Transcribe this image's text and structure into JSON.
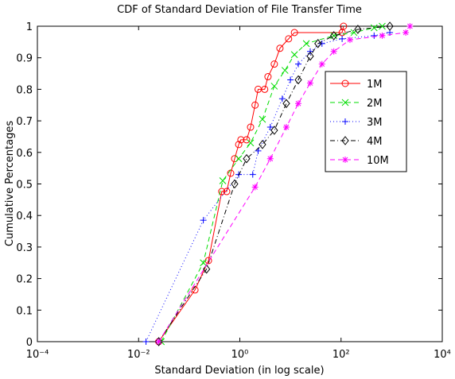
{
  "chart_data": {
    "type": "line",
    "title": "CDF of Standard Deviation of File Transfer Time",
    "x_label": "Standard Deviation (in log scale)",
    "y_label": "Cumulative Percentages",
    "x_log": true,
    "xlim": [
      0.0001,
      10000
    ],
    "xticks": [
      {
        "value": 0.0001,
        "label": "10⁻⁴"
      },
      {
        "value": 0.01,
        "label": "10⁻²"
      },
      {
        "value": 1,
        "label": "10⁰"
      },
      {
        "value": 100,
        "label": "10²"
      },
      {
        "value": 10000,
        "label": "10⁴"
      }
    ],
    "ylim": [
      0,
      1
    ],
    "yticks": [
      0,
      0.1,
      0.2,
      0.3,
      0.4,
      0.5,
      0.6,
      0.7,
      0.8,
      0.9,
      1
    ],
    "legend": "upper right",
    "series": [
      {
        "name": "1M",
        "color": "#ff0000",
        "marker": "circle",
        "dash": "",
        "x": [
          0.025,
          0.13,
          0.24,
          0.44,
          0.55,
          0.66,
          0.79,
          0.95,
          1.05,
          1.36,
          1.63,
          2.0,
          2.3,
          3.1,
          3.6,
          4.8,
          6.2,
          9.2,
          12,
          105,
          112
        ],
        "values": [
          0,
          0.164,
          0.257,
          0.476,
          0.476,
          0.534,
          0.58,
          0.625,
          0.64,
          0.64,
          0.68,
          0.75,
          0.8,
          0.8,
          0.84,
          0.88,
          0.93,
          0.96,
          0.98,
          0.98,
          1
        ]
      },
      {
        "name": "2M",
        "color": "#00dd00",
        "marker": "x",
        "dash": "6,4",
        "x": [
          0.028,
          0.19,
          0.46,
          0.95,
          1.63,
          2.8,
          4.8,
          7.8,
          12,
          20.6,
          72,
          180,
          450,
          650
        ],
        "values": [
          0,
          0.25,
          0.51,
          0.58,
          0.63,
          0.705,
          0.81,
          0.86,
          0.91,
          0.945,
          0.97,
          0.98,
          0.995,
          1
        ]
      },
      {
        "name": "3M",
        "color": "#0000ff",
        "marker": "plus",
        "dash": "1,3",
        "x": [
          0.014,
          0.19,
          0.95,
          1.8,
          2.3,
          4.0,
          6.9,
          10,
          14.3,
          24.6,
          42,
          105,
          450,
          920
        ],
        "values": [
          0,
          0.385,
          0.53,
          0.53,
          0.605,
          0.68,
          0.77,
          0.83,
          0.88,
          0.92,
          0.945,
          0.96,
          0.97,
          0.98
        ]
      },
      {
        "name": "4M",
        "color": "#000000",
        "marker": "diamond",
        "dash": "6,3,1,3",
        "x": [
          0.025,
          0.22,
          0.79,
          1.36,
          2.8,
          4.8,
          8.3,
          14.3,
          24.6,
          35,
          72,
          215,
          920
        ],
        "values": [
          0,
          0.23,
          0.5,
          0.58,
          0.625,
          0.67,
          0.755,
          0.83,
          0.905,
          0.945,
          0.97,
          0.99,
          1
        ]
      },
      {
        "name": "10M",
        "color": "#ff00ff",
        "marker": "star",
        "dash": "6,4",
        "x": [
          0.025,
          2.0,
          4.0,
          8.3,
          14.3,
          24.6,
          42,
          72,
          150,
          650,
          1900,
          2300
        ],
        "values": [
          0,
          0.49,
          0.58,
          0.68,
          0.755,
          0.82,
          0.88,
          0.92,
          0.957,
          0.97,
          0.98,
          1
        ]
      }
    ]
  }
}
